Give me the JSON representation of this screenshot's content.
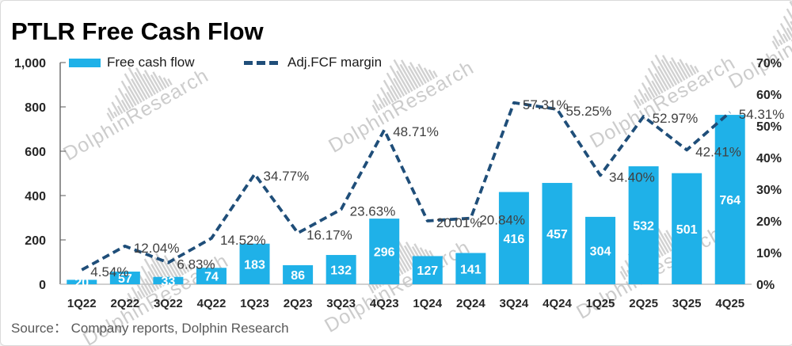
{
  "title": "PTLR Free Cash Flow",
  "source_note": "Source：  Company reports, Dolphin Research",
  "watermark_text": "DolphinResearch",
  "legend": [
    {
      "label": "Free cash flow"
    },
    {
      "label": "Adj.FCF margin"
    }
  ],
  "colors": {
    "bar": "#1FB1E8",
    "line": "#1F4E79",
    "bar_value_label": "#FFFFFF",
    "pct_label": "#404040",
    "axis_text": "#262626",
    "axis_line": "#595959",
    "baseline": "#c0c0c0",
    "source_text": "#595959"
  },
  "chart_data": {
    "type": "combo: bar + dashed line",
    "title": "PTLR Free Cash Flow",
    "categories": [
      "1Q22",
      "2Q22",
      "3Q22",
      "4Q22",
      "1Q23",
      "2Q23",
      "3Q23",
      "4Q23",
      "1Q24",
      "2Q24",
      "3Q24",
      "4Q24",
      "1Q25",
      "2Q25",
      "3Q25",
      "4Q25"
    ],
    "series": [
      {
        "name": "Free cash flow",
        "type": "bar",
        "axis": "left",
        "values": [
          20,
          57,
          33,
          74,
          183,
          86,
          132,
          296,
          127,
          141,
          416,
          457,
          304,
          532,
          501,
          764
        ]
      },
      {
        "name": "Adj.FCF margin",
        "type": "dashed-line",
        "axis": "right",
        "values_pct": [
          4.54,
          12.04,
          6.83,
          14.52,
          34.77,
          16.17,
          23.63,
          48.71,
          20.01,
          20.84,
          57.31,
          55.25,
          34.4,
          52.97,
          42.41,
          54.31
        ],
        "point_labels": [
          "4.54%",
          "12.04%",
          "6.83%",
          "14.52%",
          "34.77%",
          "16.17%",
          "23.63%",
          "48.71%",
          "20.01%",
          "20.84%",
          "57.31%",
          "55.25%",
          "34.40%",
          "52.97%",
          "42.41%",
          "54.31%"
        ]
      }
    ],
    "left_axis": {
      "min": 0,
      "max": 1000,
      "ticks": [
        "0",
        "200",
        "400",
        "600",
        "800",
        "1,000"
      ]
    },
    "right_axis": {
      "min": 0,
      "max": 70,
      "ticks": [
        "0%",
        "10%",
        "20%",
        "30%",
        "40%",
        "50%",
        "60%",
        "70%"
      ]
    },
    "grid": false,
    "legend_position": "top"
  }
}
